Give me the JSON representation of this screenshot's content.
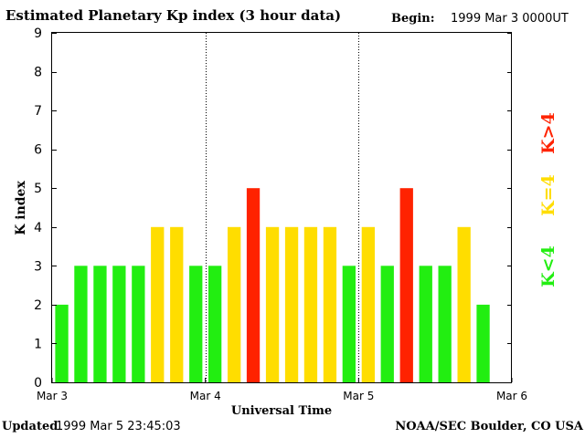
{
  "header": {
    "title": "Estimated Planetary Kp index (3 hour data)",
    "begin_label": "Begin:",
    "begin_value": "1999 Mar 3 0000UT"
  },
  "footer": {
    "updated_label": "Updated",
    "updated_value": "1999 Mar  5 23:45:03",
    "credit": "NOAA/SEC Boulder, CO USA"
  },
  "legend": {
    "quiet": "K<4",
    "unsettled": "K=4",
    "storm": "K>4"
  },
  "colors": {
    "quiet": "#22ee11",
    "unsettled": "#ffdd00",
    "storm": "#ff2200"
  },
  "chart_data": {
    "type": "bar",
    "title": "Estimated Planetary Kp index (3 hour data)",
    "xlabel": "Universal Time",
    "ylabel": "K index",
    "ylim": [
      0,
      9
    ],
    "yticks": [
      0,
      1,
      2,
      3,
      4,
      5,
      6,
      7,
      8,
      9
    ],
    "xtick_labels": [
      "Mar 3",
      "Mar 4",
      "Mar 5",
      "Mar 6"
    ],
    "interval_hours": 3,
    "values": [
      2,
      3,
      3,
      3,
      3,
      4,
      4,
      3,
      3,
      4,
      5,
      4,
      4,
      4,
      4,
      3,
      4,
      3,
      5,
      3,
      3,
      4,
      2
    ]
  }
}
